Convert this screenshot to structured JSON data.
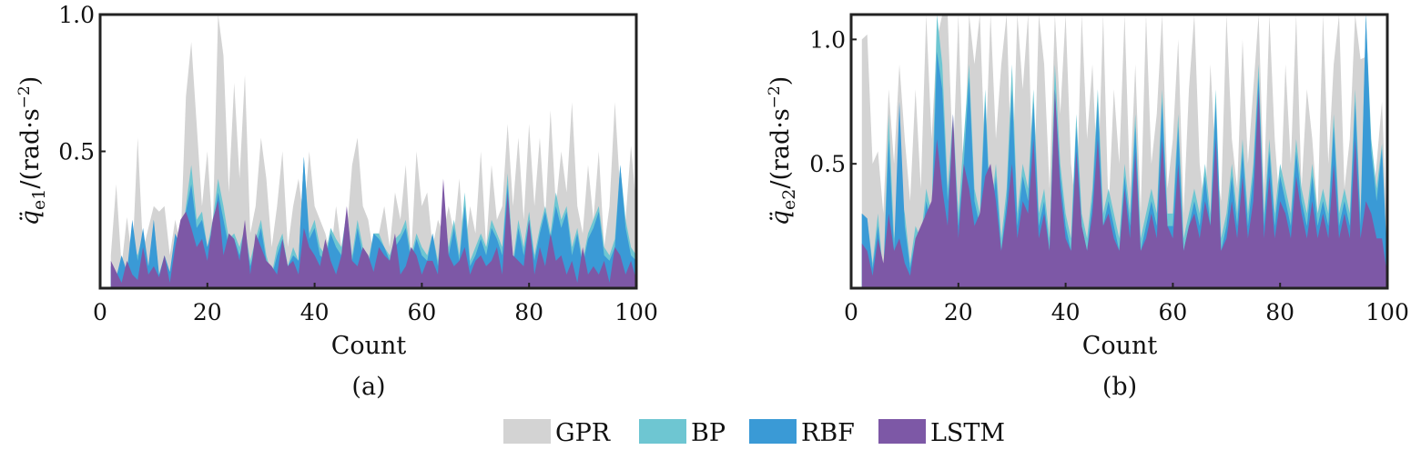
{
  "colors": {
    "GPR": "#d3d3d3",
    "BP": "#6ec6d2",
    "RBF": "#3a9ad6",
    "LSTM": "#7d58a6"
  },
  "legend": {
    "items": [
      "GPR",
      "BP",
      "RBF",
      "LSTM"
    ]
  },
  "chart_data": [
    {
      "type": "area",
      "caption": "(a)",
      "xlabel": "Count",
      "ylabel_main": "q̈",
      "ylabel_sub": "e1",
      "ylabel_unit": "/(rad·s",
      "ylabel_exp": "−2",
      "ylabel_close": ")",
      "xlim": [
        0,
        100
      ],
      "ylim": [
        0,
        1.0
      ],
      "xticks": [
        0,
        20,
        40,
        60,
        80,
        100
      ],
      "xtick_labels": [
        "0",
        "20",
        "40",
        "60",
        "80",
        "100"
      ],
      "yticks": [
        0.5,
        1.0
      ],
      "ytick_labels": [
        "0.5",
        "1.0"
      ],
      "x_start": 2,
      "x_end": 100,
      "series": [
        {
          "name": "GPR",
          "values": [
            0.12,
            0.38,
            0.08,
            0.26,
            0.1,
            0.55,
            0.14,
            0.22,
            0.3,
            0.28,
            0.3,
            0.12,
            0.25,
            0.16,
            0.7,
            0.9,
            0.6,
            0.3,
            0.5,
            0.2,
            1.0,
            0.85,
            0.35,
            0.75,
            0.4,
            0.78,
            0.2,
            0.3,
            0.55,
            0.4,
            0.15,
            0.3,
            0.5,
            0.15,
            0.3,
            0.4,
            0.25,
            0.5,
            0.3,
            0.25,
            0.2,
            0.12,
            0.3,
            0.15,
            0.2,
            0.45,
            0.55,
            0.3,
            0.25,
            0.12,
            0.2,
            0.3,
            0.15,
            0.35,
            0.25,
            0.45,
            0.12,
            0.5,
            0.3,
            0.35,
            0.15,
            0.25,
            0.2,
            0.3,
            0.2,
            0.4,
            0.12,
            0.3,
            0.2,
            0.5,
            0.15,
            0.45,
            0.25,
            0.3,
            0.6,
            0.3,
            0.55,
            0.25,
            0.6,
            0.3,
            0.55,
            0.25,
            0.65,
            0.3,
            0.5,
            0.35,
            0.68,
            0.3,
            0.2,
            0.45,
            0.25,
            0.5,
            0.15,
            0.3,
            0.68,
            0.35,
            0.25,
            0.52,
            0.3
          ]
        },
        {
          "name": "BP",
          "values": [
            0.08,
            0.03,
            0.1,
            0.05,
            0.15,
            0.12,
            0.2,
            0.06,
            0.25,
            0.04,
            0.1,
            0.05,
            0.18,
            0.15,
            0.3,
            0.45,
            0.25,
            0.28,
            0.15,
            0.25,
            0.4,
            0.3,
            0.18,
            0.2,
            0.15,
            0.22,
            0.1,
            0.18,
            0.25,
            0.12,
            0.05,
            0.15,
            0.2,
            0.08,
            0.15,
            0.1,
            0.48,
            0.2,
            0.25,
            0.15,
            0.12,
            0.22,
            0.18,
            0.15,
            0.28,
            0.12,
            0.25,
            0.15,
            0.1,
            0.2,
            0.2,
            0.15,
            0.12,
            0.18,
            0.2,
            0.25,
            0.12,
            0.2,
            0.15,
            0.12,
            0.2,
            0.1,
            0.3,
            0.15,
            0.25,
            0.12,
            0.35,
            0.1,
            0.15,
            0.2,
            0.15,
            0.25,
            0.2,
            0.15,
            0.42,
            0.1,
            0.25,
            0.15,
            0.28,
            0.12,
            0.22,
            0.3,
            0.2,
            0.35,
            0.25,
            0.3,
            0.15,
            0.22,
            0.1,
            0.2,
            0.25,
            0.3,
            0.15,
            0.12,
            0.18,
            0.45,
            0.25,
            0.15,
            0.12
          ]
        },
        {
          "name": "RBF",
          "values": [
            0.08,
            0.04,
            0.12,
            0.06,
            0.25,
            0.1,
            0.22,
            0.08,
            0.25,
            0.05,
            0.12,
            0.06,
            0.2,
            0.15,
            0.28,
            0.38,
            0.22,
            0.25,
            0.15,
            0.22,
            0.35,
            0.25,
            0.15,
            0.18,
            0.12,
            0.2,
            0.08,
            0.15,
            0.22,
            0.1,
            0.04,
            0.12,
            0.18,
            0.08,
            0.12,
            0.1,
            0.48,
            0.18,
            0.22,
            0.12,
            0.1,
            0.2,
            0.15,
            0.12,
            0.25,
            0.1,
            0.22,
            0.12,
            0.08,
            0.2,
            0.18,
            0.15,
            0.1,
            0.15,
            0.18,
            0.22,
            0.1,
            0.18,
            0.12,
            0.1,
            0.2,
            0.08,
            0.28,
            0.12,
            0.22,
            0.1,
            0.3,
            0.08,
            0.12,
            0.18,
            0.12,
            0.22,
            0.18,
            0.12,
            0.38,
            0.08,
            0.22,
            0.12,
            0.25,
            0.1,
            0.2,
            0.28,
            0.18,
            0.3,
            0.22,
            0.28,
            0.12,
            0.2,
            0.08,
            0.18,
            0.22,
            0.28,
            0.12,
            0.1,
            0.15,
            0.45,
            0.22,
            0.12,
            0.1
          ]
        },
        {
          "name": "LSTM",
          "values": [
            0.1,
            0.06,
            0.02,
            0.1,
            0.05,
            0.03,
            0.15,
            0.05,
            0.08,
            0.04,
            0.12,
            0.02,
            0.15,
            0.25,
            0.28,
            0.22,
            0.15,
            0.18,
            0.1,
            0.25,
            0.32,
            0.12,
            0.2,
            0.18,
            0.1,
            0.25,
            0.05,
            0.2,
            0.15,
            0.1,
            0.08,
            0.05,
            0.18,
            0.08,
            0.1,
            0.05,
            0.22,
            0.15,
            0.12,
            0.08,
            0.18,
            0.1,
            0.05,
            0.12,
            0.3,
            0.1,
            0.08,
            0.15,
            0.12,
            0.06,
            0.15,
            0.12,
            0.1,
            0.2,
            0.05,
            0.08,
            0.15,
            0.12,
            0.05,
            0.1,
            0.1,
            0.05,
            0.4,
            0.12,
            0.08,
            0.1,
            0.15,
            0.05,
            0.1,
            0.12,
            0.08,
            0.1,
            0.15,
            0.05,
            0.35,
            0.12,
            0.1,
            0.08,
            0.25,
            0.05,
            0.15,
            0.08,
            0.2,
            0.1,
            0.12,
            0.05,
            0.1,
            0.02,
            0.15,
            0.05,
            0.08,
            0.05,
            0.1,
            0.02,
            0.15,
            0.12,
            0.05,
            0.1,
            0.03
          ]
        }
      ]
    },
    {
      "type": "area",
      "caption": "(b)",
      "xlabel": "Count",
      "ylabel_main": "q̈",
      "ylabel_sub": "e2",
      "ylabel_unit": "/(rad·s",
      "ylabel_exp": "−2",
      "ylabel_close": ")",
      "xlim": [
        0,
        100
      ],
      "ylim": [
        0,
        1.1
      ],
      "xticks": [
        0,
        20,
        40,
        60,
        80,
        100
      ],
      "xtick_labels": [
        "0",
        "20",
        "40",
        "60",
        "80",
        "100"
      ],
      "yticks": [
        0.5,
        1.0
      ],
      "ytick_labels": [
        "0.5",
        "1.0"
      ],
      "x_start": 2,
      "x_end": 100,
      "series": [
        {
          "name": "GPR",
          "values": [
            1.0,
            1.02,
            0.5,
            0.55,
            0.3,
            0.8,
            0.5,
            0.9,
            0.6,
            0.35,
            0.8,
            0.4,
            1.1,
            0.6,
            1.0,
            1.1,
            1.1,
            0.5,
            1.1,
            0.4,
            1.1,
            0.9,
            1.1,
            0.5,
            1.1,
            0.6,
            0.9,
            1.1,
            0.4,
            1.1,
            0.8,
            1.1,
            0.3,
            1.1,
            0.9,
            0.4,
            1.1,
            0.7,
            1.1,
            0.5,
            0.3,
            1.1,
            0.6,
            0.9,
            0.4,
            1.1,
            0.3,
            0.8,
            0.5,
            1.1,
            0.4,
            0.9,
            0.3,
            1.1,
            0.5,
            0.7,
            1.1,
            0.4,
            0.6,
            1.0,
            0.3,
            0.8,
            1.1,
            0.5,
            0.3,
            0.9,
            0.5,
            0.35,
            1.1,
            0.6,
            0.4,
            1.0,
            0.5,
            0.8,
            1.1,
            0.4,
            1.1,
            0.6,
            0.3,
            0.9,
            0.5,
            1.1,
            0.4,
            0.8,
            0.6,
            0.3,
            1.1,
            0.5,
            0.9,
            1.1,
            0.4,
            0.6,
            1.1,
            0.92,
            0.93,
            0.3,
            0.5,
            0.75,
            0.2
          ]
        },
        {
          "name": "BP",
          "values": [
            0.3,
            0.28,
            0.1,
            0.3,
            0.05,
            0.7,
            0.2,
            0.4,
            0.3,
            0.1,
            0.25,
            0.2,
            0.4,
            0.3,
            1.1,
            0.9,
            0.4,
            0.7,
            0.3,
            0.6,
            0.9,
            0.4,
            0.3,
            0.8,
            0.3,
            0.5,
            0.2,
            0.4,
            0.9,
            0.3,
            0.5,
            0.4,
            0.8,
            0.3,
            0.4,
            0.2,
            0.9,
            0.5,
            0.3,
            0.2,
            0.7,
            0.3,
            0.2,
            0.4,
            0.8,
            0.3,
            0.4,
            0.3,
            0.2,
            0.5,
            0.3,
            0.7,
            0.2,
            0.3,
            0.4,
            0.3,
            0.8,
            0.3,
            0.3,
            0.7,
            0.2,
            0.3,
            0.4,
            0.3,
            0.5,
            0.3,
            0.8,
            0.2,
            0.3,
            0.5,
            0.3,
            0.6,
            0.3,
            0.5,
            0.9,
            0.3,
            0.6,
            0.3,
            0.5,
            0.4,
            0.3,
            0.6,
            0.4,
            0.3,
            0.5,
            0.3,
            0.4,
            0.3,
            0.7,
            0.3,
            0.4,
            0.3,
            0.8,
            0.3,
            1.1,
            0.6,
            0.4,
            0.58,
            0.1
          ]
        },
        {
          "name": "RBF",
          "values": [
            0.3,
            0.28,
            0.08,
            0.25,
            0.05,
            0.6,
            0.15,
            0.75,
            0.25,
            0.08,
            0.2,
            0.15,
            0.35,
            0.25,
            0.95,
            0.8,
            0.35,
            0.6,
            0.25,
            0.5,
            0.85,
            0.35,
            0.25,
            0.75,
            0.25,
            0.45,
            0.15,
            0.35,
            0.8,
            0.25,
            0.45,
            0.35,
            0.75,
            0.25,
            0.35,
            0.15,
            0.8,
            0.45,
            0.25,
            0.15,
            0.65,
            0.25,
            0.15,
            0.35,
            0.75,
            0.25,
            0.35,
            0.25,
            0.15,
            0.45,
            0.25,
            0.65,
            0.15,
            0.25,
            0.35,
            0.25,
            0.75,
            0.25,
            0.25,
            0.65,
            0.15,
            0.25,
            0.35,
            0.25,
            0.45,
            0.25,
            0.75,
            0.15,
            0.25,
            0.45,
            0.25,
            0.55,
            0.25,
            0.45,
            0.85,
            0.25,
            0.55,
            0.25,
            0.45,
            0.35,
            0.25,
            0.55,
            0.35,
            0.25,
            0.45,
            0.25,
            0.35,
            0.25,
            0.65,
            0.25,
            0.35,
            0.25,
            0.75,
            0.25,
            1.1,
            0.55,
            0.35,
            0.56,
            0.1
          ]
        },
        {
          "name": "LSTM",
          "values": [
            0.18,
            0.15,
            0.05,
            0.2,
            0.1,
            0.3,
            0.15,
            0.2,
            0.1,
            0.05,
            0.2,
            0.25,
            0.3,
            0.35,
            0.6,
            0.4,
            0.25,
            0.7,
            0.2,
            0.5,
            0.4,
            0.25,
            0.3,
            0.45,
            0.5,
            0.35,
            0.15,
            0.3,
            0.5,
            0.2,
            0.35,
            0.3,
            0.6,
            0.2,
            0.3,
            0.15,
            0.8,
            0.4,
            0.2,
            0.15,
            0.55,
            0.25,
            0.15,
            0.3,
            0.6,
            0.25,
            0.3,
            0.2,
            0.15,
            0.4,
            0.2,
            0.55,
            0.15,
            0.2,
            0.3,
            0.2,
            0.6,
            0.25,
            0.2,
            0.5,
            0.15,
            0.25,
            0.3,
            0.2,
            0.35,
            0.25,
            0.6,
            0.15,
            0.2,
            0.35,
            0.2,
            0.45,
            0.2,
            0.35,
            0.8,
            0.2,
            0.45,
            0.2,
            0.35,
            0.3,
            0.2,
            0.45,
            0.3,
            0.2,
            0.35,
            0.2,
            0.3,
            0.2,
            0.5,
            0.2,
            0.3,
            0.2,
            0.6,
            0.2,
            0.35,
            0.3,
            0.2,
            0.2,
            0.05
          ]
        }
      ]
    }
  ]
}
